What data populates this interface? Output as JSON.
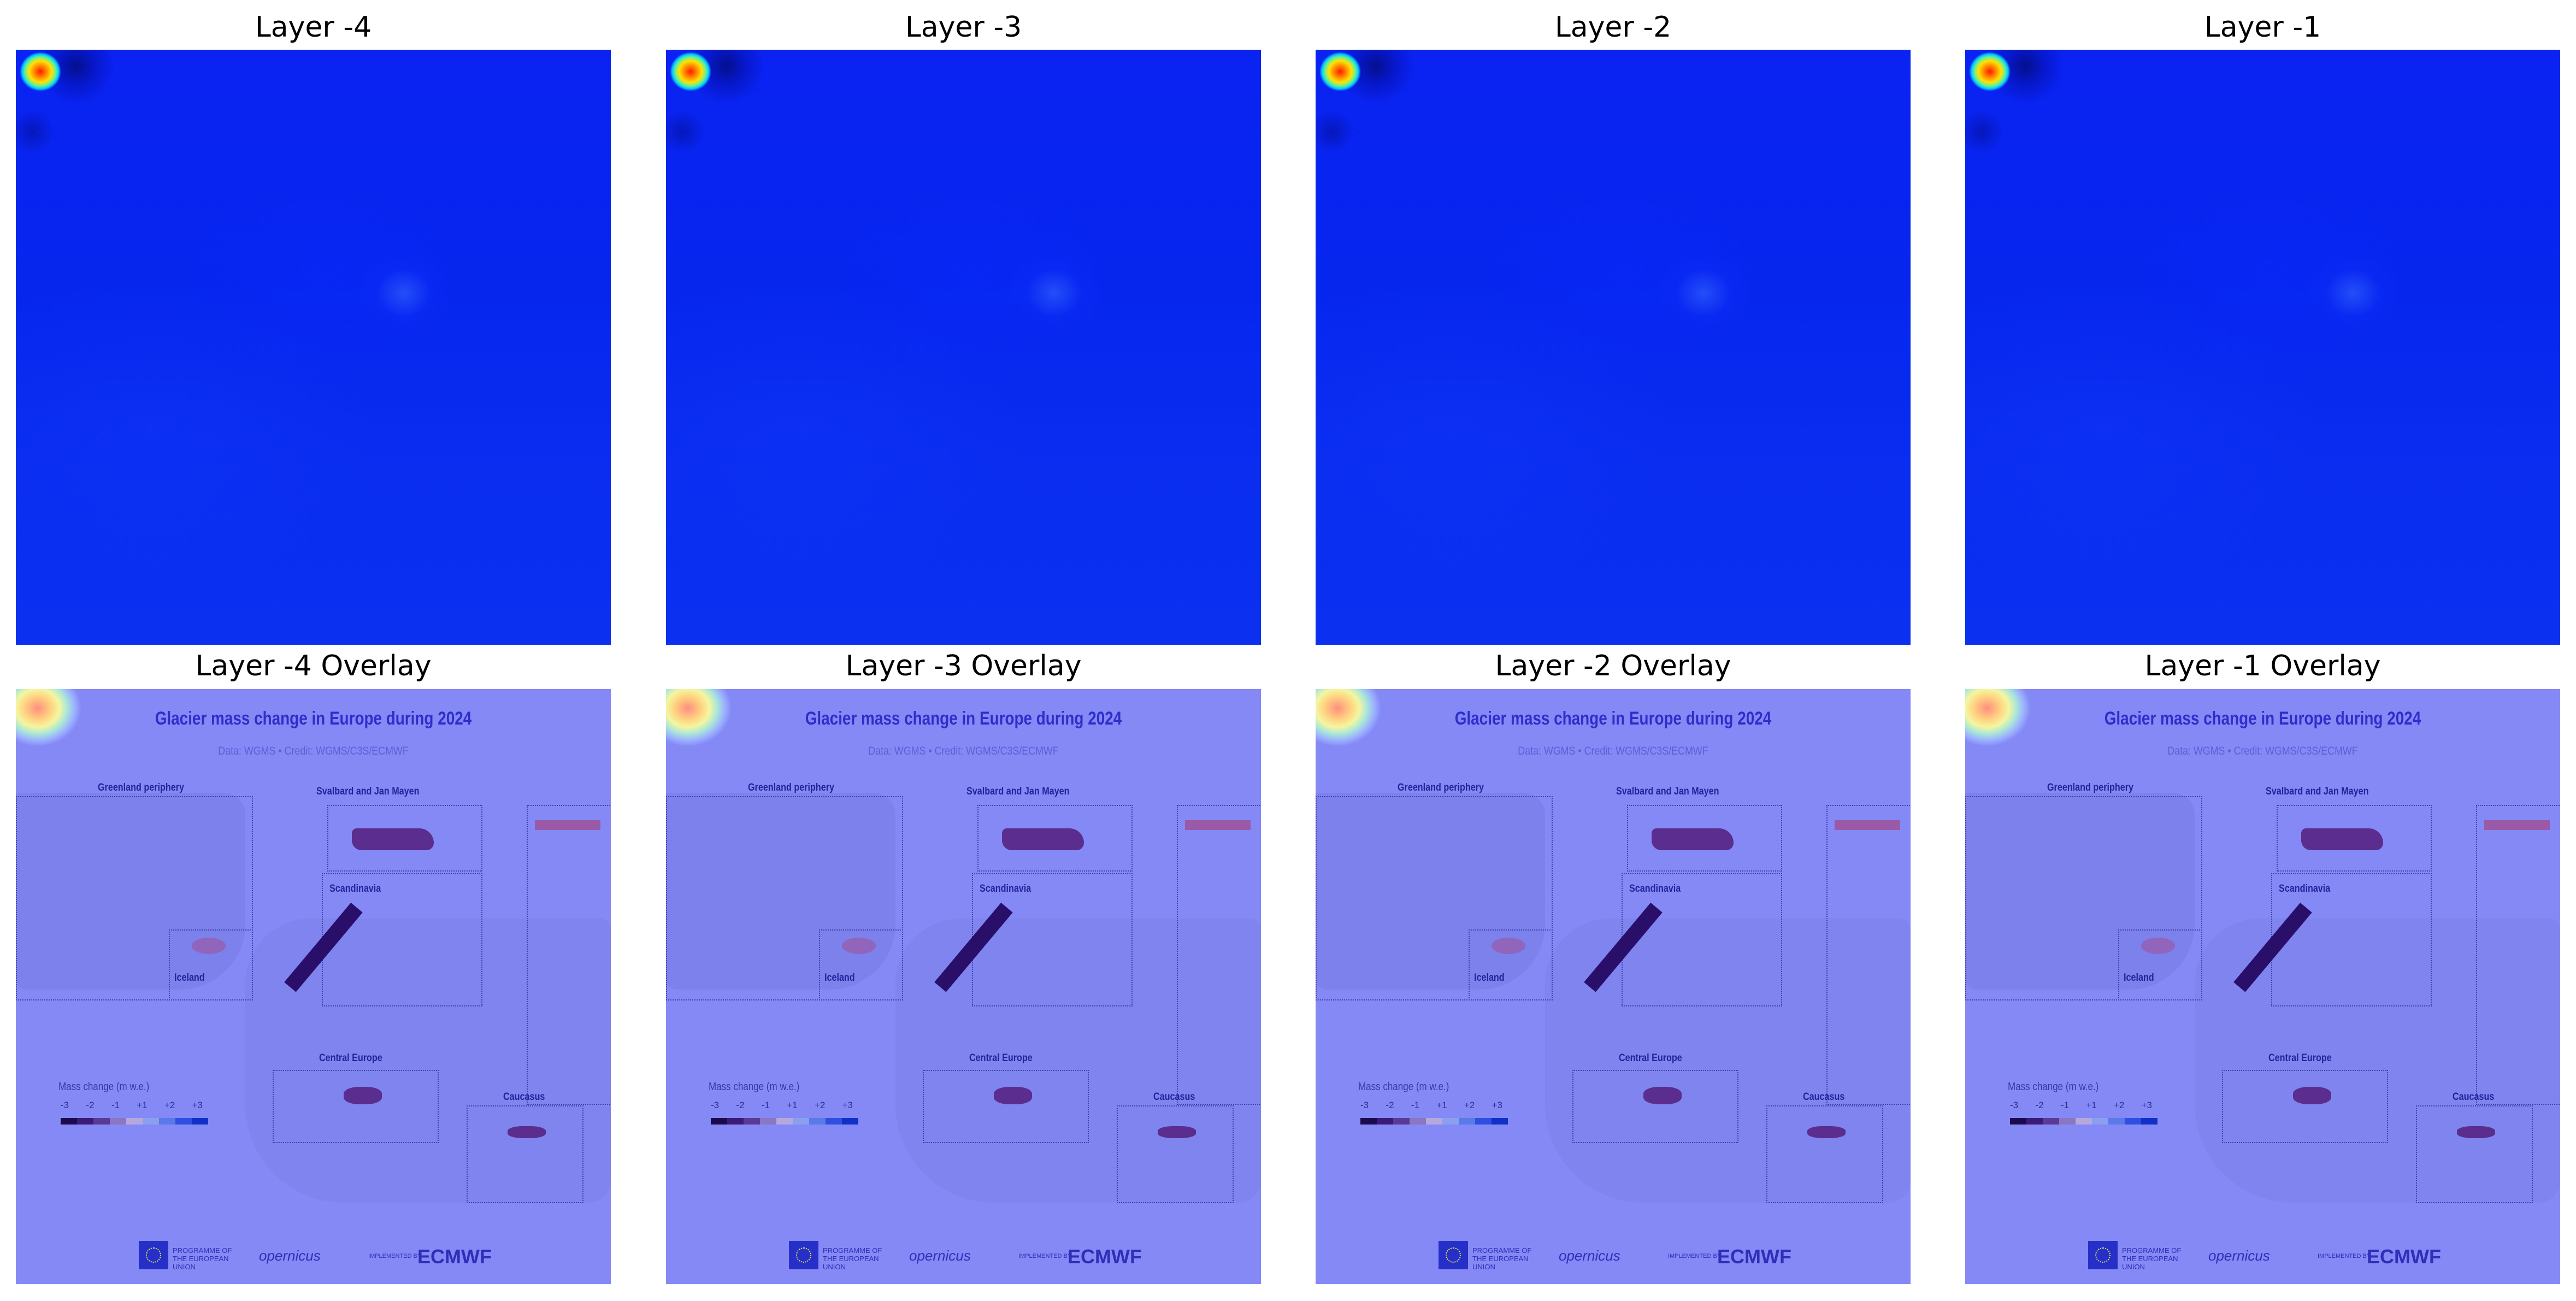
{
  "figure": {
    "panels_top": [
      {
        "title": "Layer -4"
      },
      {
        "title": "Layer -3"
      },
      {
        "title": "Layer -2"
      },
      {
        "title": "Layer -1"
      }
    ],
    "panels_bottom": [
      {
        "title": "Layer -4 Overlay"
      },
      {
        "title": "Layer -3 Overlay"
      },
      {
        "title": "Layer -2 Overlay"
      },
      {
        "title": "Layer -1 Overlay"
      }
    ]
  },
  "overlay_map": {
    "title": "Glacier mass change in Europe during 2024",
    "subtitle": "Data: WGMS • Credit: WGMS/C3S/ECMWF",
    "regions": {
      "greenland": "Greenland periphery",
      "svalbard": "Svalbard and Jan Mayen",
      "scandinavia": "Scandinavia",
      "iceland": "Iceland",
      "central_europe": "Central Europe",
      "caucasus": "Caucasus"
    },
    "legend": {
      "title": "Mass change (m w.e.)",
      "ticks": [
        "-3",
        "-2",
        "-1",
        "+1",
        "+2",
        "+3"
      ]
    },
    "logos": {
      "eu": "PROGRAMME OF THE EUROPEAN UNION",
      "copernicus": "opernicus",
      "implemented": "IMPLEMENTED BY",
      "ecmwf": "ECMWF"
    }
  },
  "colors": {
    "heat_base": "#0a22f2",
    "overlay_base": "#8489f5",
    "legend": [
      "#1c0a4e",
      "#3b1a78",
      "#5a3a96",
      "#8a76c2",
      "#b4a8dc",
      "#8aa0ee",
      "#5a7ae8",
      "#2f4fe0",
      "#1030c8"
    ]
  }
}
